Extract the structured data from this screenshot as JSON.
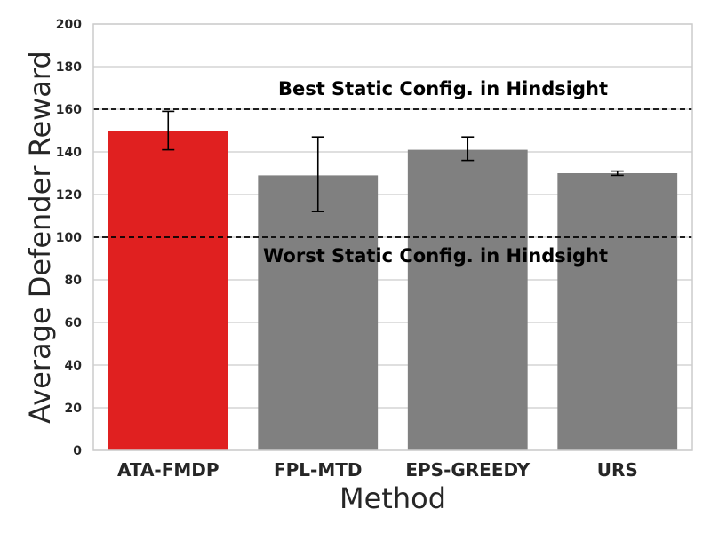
{
  "chart_data": {
    "type": "bar",
    "xlabel": "Method",
    "ylabel": "Average Defender Reward",
    "ylim": [
      0,
      200
    ],
    "yticks": [
      0,
      20,
      40,
      60,
      80,
      100,
      120,
      140,
      160,
      180,
      200
    ],
    "grid": "horizontal",
    "categories": [
      "ATA-FMDP",
      "FPL-MTD",
      "EPS-GREEDY",
      "URS"
    ],
    "values": [
      150,
      129,
      141,
      130
    ],
    "error_low": [
      141,
      112,
      136,
      129
    ],
    "error_high": [
      159,
      147,
      147,
      131
    ],
    "bar_colors": [
      "#e02020",
      "#808080",
      "#808080",
      "#808080"
    ],
    "reference_lines": [
      {
        "label": "Best Static Config. in Hindsight",
        "value": 160,
        "style": "dashed",
        "color": "#000000"
      },
      {
        "label": "Worst Static Config. in Hindsight",
        "value": 100,
        "style": "dashed",
        "color": "#000000"
      }
    ]
  }
}
